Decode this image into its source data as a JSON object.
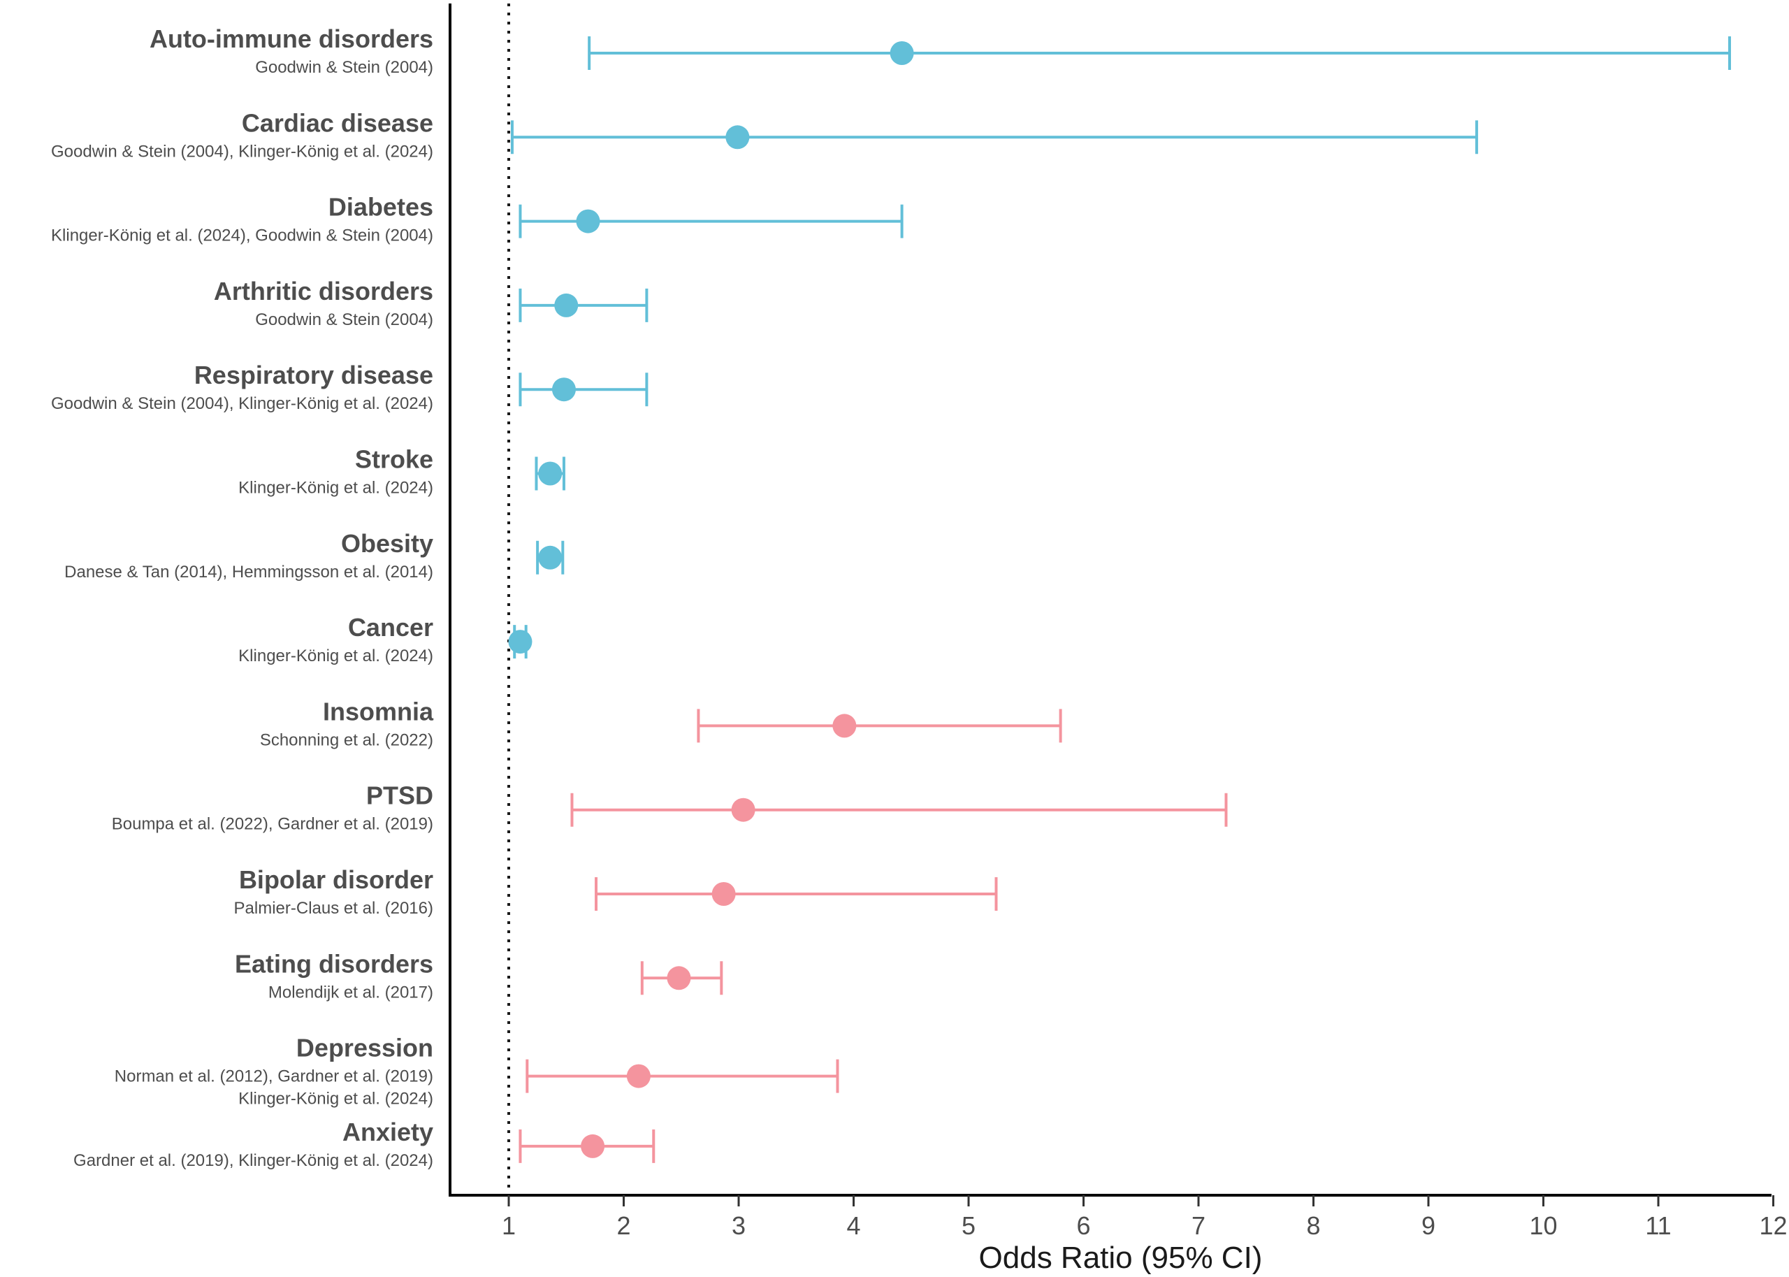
{
  "chart_data": {
    "type": "forest",
    "xlabel": "Odds Ratio (95% CI)",
    "xlim": [
      0.5,
      12
    ],
    "xticks": [
      1,
      2,
      3,
      4,
      5,
      6,
      7,
      8,
      9,
      10,
      11,
      12
    ],
    "reference_line": 1,
    "colors": {
      "physical": "#62bfd8",
      "mental": "#f4949e"
    },
    "rows": [
      {
        "label": "Auto-immune disorders",
        "studies": [
          "Goodwin & Stein (2004)"
        ],
        "or": 4.42,
        "lo": 1.7,
        "hi": 11.62,
        "group": "physical"
      },
      {
        "label": "Cardiac disease",
        "studies": [
          "Goodwin & Stein (2004), Klinger-König et al. (2024)"
        ],
        "or": 2.99,
        "lo": 1.03,
        "hi": 9.42,
        "group": "physical"
      },
      {
        "label": "Diabetes",
        "studies": [
          "Klinger-König et al. (2024), Goodwin & Stein (2004)"
        ],
        "or": 1.69,
        "lo": 1.1,
        "hi": 4.42,
        "group": "physical"
      },
      {
        "label": "Arthritic disorders",
        "studies": [
          "Goodwin & Stein (2004)"
        ],
        "or": 1.5,
        "lo": 1.1,
        "hi": 2.2,
        "group": "physical"
      },
      {
        "label": "Respiratory disease",
        "studies": [
          "Goodwin & Stein (2004), Klinger-König et al. (2024)"
        ],
        "or": 1.48,
        "lo": 1.1,
        "hi": 2.2,
        "group": "physical"
      },
      {
        "label": "Stroke",
        "studies": [
          "Klinger-König et al. (2024)"
        ],
        "or": 1.36,
        "lo": 1.24,
        "hi": 1.48,
        "group": "physical"
      },
      {
        "label": "Obesity",
        "studies": [
          "Danese & Tan (2014), Hemmingsson et al. (2014)"
        ],
        "or": 1.36,
        "lo": 1.25,
        "hi": 1.47,
        "group": "physical"
      },
      {
        "label": "Cancer",
        "studies": [
          "Klinger-König et al. (2024)"
        ],
        "or": 1.1,
        "lo": 1.05,
        "hi": 1.15,
        "group": "physical"
      },
      {
        "label": "Insomnia",
        "studies": [
          "Schonning et al. (2022)"
        ],
        "or": 3.92,
        "lo": 2.65,
        "hi": 5.8,
        "group": "mental"
      },
      {
        "label": "PTSD",
        "studies": [
          "Boumpa et al. (2022), Gardner et al. (2019)"
        ],
        "or": 3.04,
        "lo": 1.55,
        "hi": 7.24,
        "group": "mental"
      },
      {
        "label": "Bipolar disorder",
        "studies": [
          "Palmier-Claus et al. (2016)"
        ],
        "or": 2.87,
        "lo": 1.76,
        "hi": 5.24,
        "group": "mental"
      },
      {
        "label": "Eating disorders",
        "studies": [
          "Molendijk et al. (2017)"
        ],
        "or": 2.48,
        "lo": 2.16,
        "hi": 2.85,
        "group": "mental"
      },
      {
        "label": "Depression",
        "studies": [
          "Norman et al. (2012), Gardner et al. (2019)",
          "Klinger-König et al. (2024)"
        ],
        "or": 2.13,
        "lo": 1.16,
        "hi": 3.86,
        "group": "mental"
      },
      {
        "label": "Anxiety",
        "studies": [
          "Gardner et al. (2019), Klinger-König et al. (2024)"
        ],
        "or": 1.73,
        "lo": 1.1,
        "hi": 2.26,
        "group": "mental"
      }
    ]
  }
}
